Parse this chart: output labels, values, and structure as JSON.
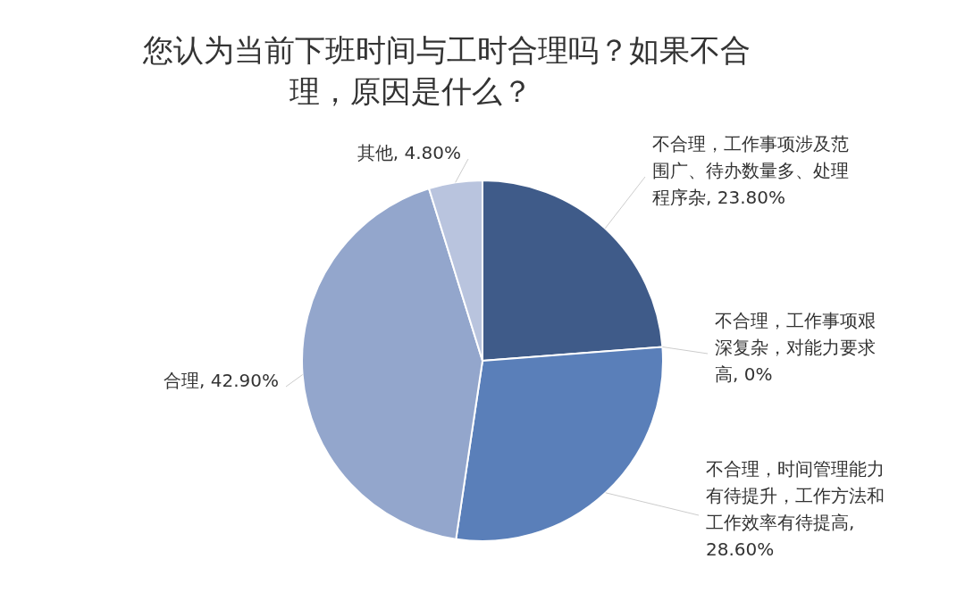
{
  "chart_data": {
    "type": "pie",
    "title": "您认为当前下班时间与工时合理吗？如果不合理，原因是什么？",
    "categories": [
      "不合理，工作事项涉及范围广、待办数量多、处理程序杂",
      "不合理，工作事项艰深复杂，对能力要求高",
      "不合理，时间管理能力有待提升，工作方法和工作效率有待提高",
      "合理",
      "其他"
    ],
    "values": [
      23.8,
      0,
      28.6,
      42.9,
      4.8
    ],
    "value_labels": [
      ", 23.80%",
      ", 0%",
      ", 28.60%",
      ", 42.90%",
      ", 4.80%"
    ],
    "colors": [
      "#3f5b89",
      "#4a6ca6",
      "#5a7fb9",
      "#93a6cc",
      "#b9c4de"
    ]
  }
}
